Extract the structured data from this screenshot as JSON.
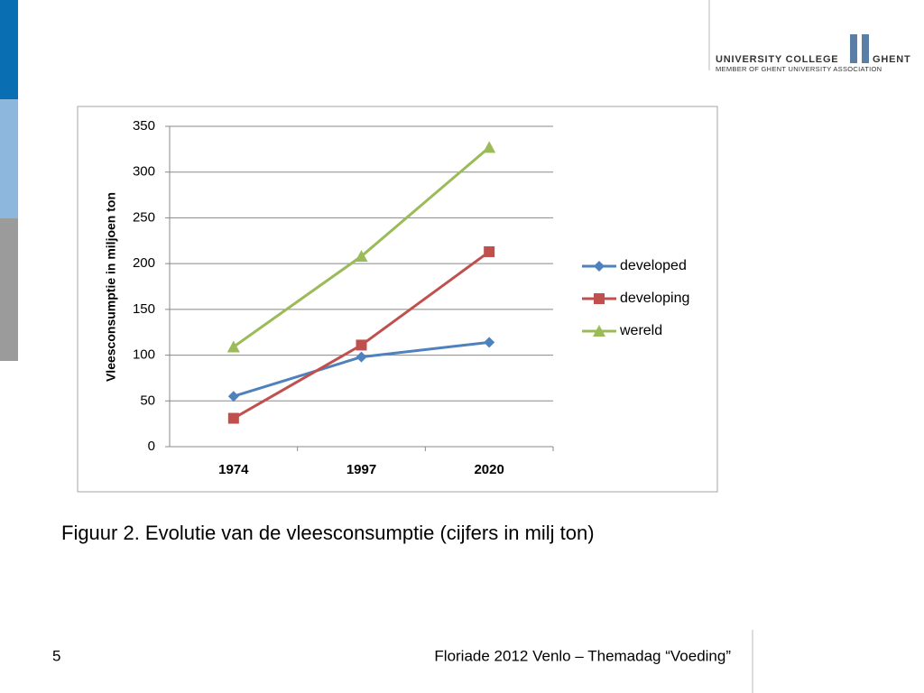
{
  "chart_data": {
    "type": "line",
    "y_label": "Vleesconsumptie in miljoen ton",
    "categories": [
      "1974",
      "1997",
      "2020"
    ],
    "series": [
      {
        "name": "developed",
        "color": "#4f81bd",
        "marker": "diamond",
        "values": [
          55,
          98,
          114
        ]
      },
      {
        "name": "developing",
        "color": "#c0504d",
        "marker": "square",
        "values": [
          31,
          111,
          213
        ]
      },
      {
        "name": "wereld",
        "color": "#9bbb59",
        "marker": "triangle",
        "values": [
          109,
          208,
          327
        ]
      }
    ],
    "ylim": [
      0,
      350
    ],
    "yticks": [
      0,
      50,
      100,
      150,
      200,
      250,
      300,
      350
    ],
    "grid": true,
    "legend": "right"
  },
  "slide": {
    "caption": "Figuur 2. Evolutie van de vleesconsumptie (cijfers in milj ton)",
    "logo_line1_left": "UNIVERSITY COLLEGE",
    "logo_line1_right": "GHENT",
    "logo_line2": "MEMBER OF GHENT UNIVERSITY ASSOCIATION",
    "page_number": "5",
    "footer": "Floriade 2012 Venlo – Themadag “Voeding”"
  }
}
